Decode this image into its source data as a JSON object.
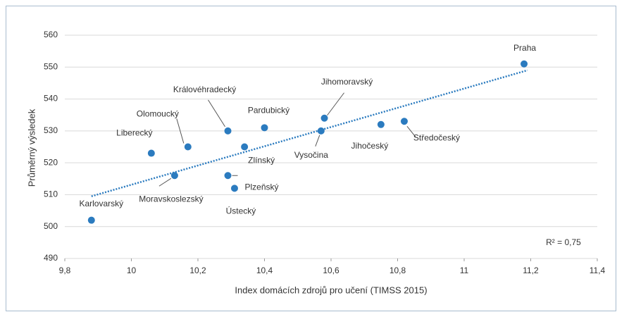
{
  "chart_data": {
    "type": "scatter",
    "x_label": "Index domácích zdrojů pro učení (TIMSS 2015)",
    "y_label": "Průměrný výsledek",
    "annotation": "R² = 0,75",
    "color": "#2b7bbf",
    "grid": true,
    "series": [
      {
        "names": [
          "Karlovarský",
          "Liberecký",
          "Moravskoslezský",
          "Olomoucký",
          "Královéhradecký",
          "Zlínský",
          "Plzeňský",
          "Ústecký",
          "Pardubický",
          "Vysočina",
          "Jihomoravský",
          "Jihočeský",
          "Středočeský",
          "Praha"
        ],
        "x": [
          9.88,
          10.06,
          10.13,
          10.17,
          10.29,
          10.34,
          10.29,
          10.31,
          10.4,
          10.57,
          10.58,
          10.75,
          10.82,
          11.18
        ],
        "values": [
          502,
          523,
          516,
          525,
          530,
          525,
          516,
          512,
          531,
          530,
          534,
          532,
          533,
          551
        ]
      }
    ],
    "trendline": {
      "x": [
        9.88,
        11.19
      ],
      "values": [
        509.5,
        549
      ]
    },
    "xlim": [
      9.8,
      11.4
    ],
    "xticks": [
      {
        "value": 9.8,
        "label": "9,8"
      },
      10,
      {
        "value": 10.2,
        "label": "10,2"
      },
      {
        "value": 10.4,
        "label": "10,4"
      },
      {
        "value": 10.6,
        "label": "10,6"
      },
      {
        "value": 10.8,
        "label": "10,8"
      },
      11,
      {
        "value": 11.2,
        "label": "11,2"
      },
      {
        "value": 11.4,
        "label": "11,4"
      }
    ],
    "ylim": [
      490,
      560
    ],
    "yticks": [
      490,
      500,
      510,
      520,
      530,
      540,
      550,
      560
    ]
  }
}
